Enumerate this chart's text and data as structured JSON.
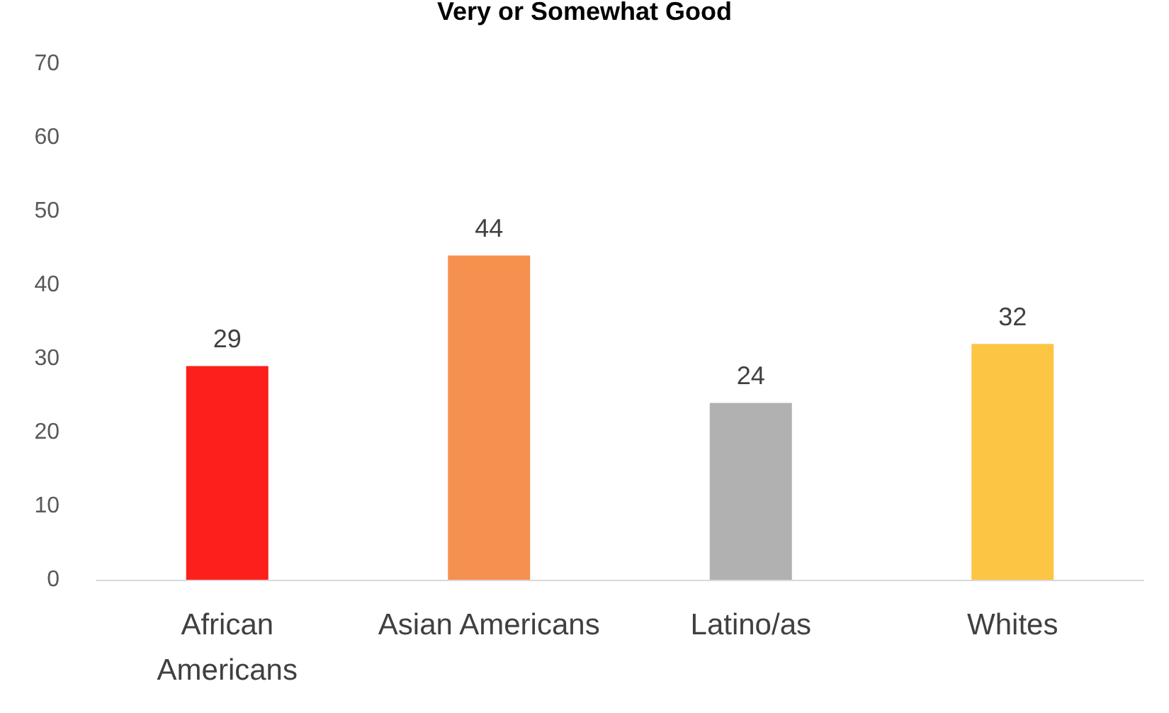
{
  "chart_data": {
    "type": "bar",
    "title": "Very or Somewhat Good",
    "categories": [
      "African\nAmericans",
      "Asian Americans",
      "Latino/as",
      "Whites"
    ],
    "values": [
      29,
      44,
      24,
      32
    ],
    "colors": [
      "#fc1f1c",
      "#f5904f",
      "#b1b1b1",
      "#fdc544"
    ],
    "ylim": [
      0,
      70
    ],
    "yticks": [
      0,
      10,
      20,
      30,
      40,
      50,
      60,
      70
    ],
    "grid": false,
    "data_labels": true
  }
}
